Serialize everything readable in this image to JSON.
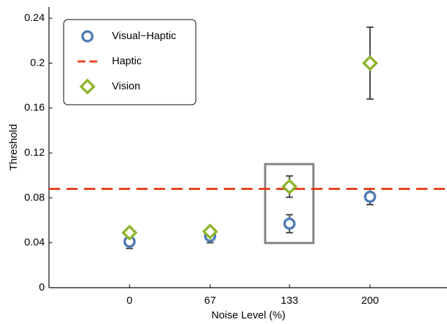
{
  "chart_data": {
    "type": "scatter",
    "x_label": "Noise Level (%)",
    "y_label": "Threshold",
    "x": [
      0,
      67,
      133,
      200
    ],
    "xlim": [
      -67,
      264
    ],
    "xticks": [
      0,
      67,
      133,
      200
    ],
    "ylim": [
      0,
      0.25
    ],
    "yticks": [
      0,
      0.04,
      0.08,
      0.12,
      0.16,
      0.2,
      0.24
    ],
    "legend": "upper left",
    "series": [
      {
        "name": "Visual−Haptic",
        "color": "#4f7bb5",
        "marker": "circle",
        "values": [
          0.041,
          0.046,
          0.057,
          0.081
        ],
        "errors": [
          0.006,
          0.006,
          0.008,
          0.007
        ]
      },
      {
        "name": "Haptic",
        "color": "#e8401c",
        "marker": "dashed-line",
        "values": [
          0.088
        ]
      },
      {
        "name": "Vision",
        "color": "#8db52c",
        "marker": "diamond",
        "values": [
          0.049,
          0.05,
          0.09,
          0.2
        ],
        "errors": [
          null,
          null,
          0.0095,
          0.032
        ]
      }
    ]
  }
}
